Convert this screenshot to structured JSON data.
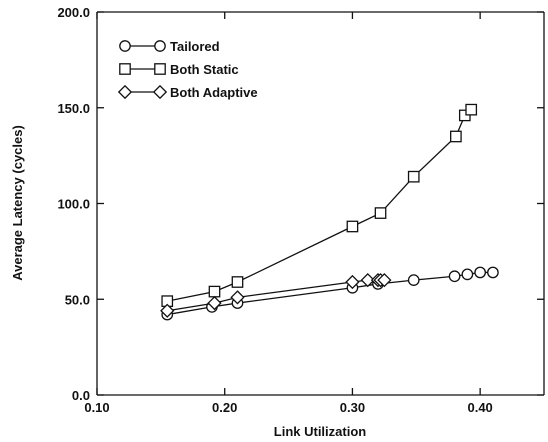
{
  "chart_data": {
    "type": "line",
    "title": "",
    "xlabel": "Link Utilization",
    "ylabel": "Average Latency (cycles)",
    "xlim": [
      0.1,
      0.45
    ],
    "ylim": [
      0.0,
      200.0
    ],
    "xticks": [
      "0.10",
      "0.20",
      "0.30",
      "0.40"
    ],
    "yticks": [
      "0.0",
      "50.0",
      "100.0",
      "150.0",
      "200.0"
    ],
    "grid": false,
    "legend_position": "top-left",
    "series": [
      {
        "name": "Tailored",
        "marker": "circle",
        "x": [
          0.155,
          0.19,
          0.21,
          0.3,
          0.32,
          0.348,
          0.38,
          0.39,
          0.4,
          0.41
        ],
        "y": [
          42,
          46,
          48,
          56,
          58,
          60,
          62,
          63,
          64,
          64
        ]
      },
      {
        "name": "Both Static",
        "marker": "square",
        "x": [
          0.155,
          0.192,
          0.21,
          0.3,
          0.322,
          0.348,
          0.381,
          0.388,
          0.393
        ],
        "y": [
          49,
          54,
          59,
          88,
          95,
          114,
          135,
          146,
          149
        ]
      },
      {
        "name": "Both Adaptive",
        "marker": "diamond",
        "x": [
          0.155,
          0.192,
          0.21,
          0.3,
          0.312,
          0.32,
          0.322,
          0.325
        ],
        "y": [
          44,
          48,
          51,
          59,
          60,
          60,
          60,
          60
        ]
      }
    ]
  }
}
